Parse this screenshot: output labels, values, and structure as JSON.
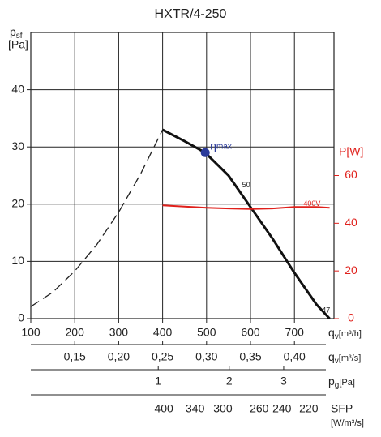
{
  "chart_data": {
    "type": "line",
    "title": "HXTR/4-250",
    "y_label": {
      "main": "p",
      "sub": "sf",
      "unit": "[Pa]"
    },
    "x_label": {
      "main": "q",
      "sub": "v",
      "unit": "[m³/h]"
    },
    "y2_label": "P[W]",
    "y2_color": "#e0201b",
    "xlim": [
      100,
      790
    ],
    "xticks": [
      100,
      200,
      300,
      400,
      500,
      600,
      700
    ],
    "ylim": [
      0,
      50
    ],
    "yticks": [
      0,
      10,
      20,
      30,
      40
    ],
    "y2lim": [
      0,
      120
    ],
    "y2ticks": [
      0,
      20,
      40,
      60
    ],
    "grid": true,
    "series": [
      {
        "color": "#222222",
        "dash": true,
        "x": [
          100,
          150,
          200,
          250,
          300,
          350,
          400
        ],
        "values": [
          2.1,
          4.6,
          8.3,
          12.9,
          18.6,
          25.3,
          33
        ]
      },
      {
        "color": "#111111",
        "dash": false,
        "x": [
          400,
          450,
          497,
          550,
          600,
          650,
          700,
          750,
          780
        ],
        "values": [
          33,
          31,
          29,
          25,
          19.5,
          14,
          8,
          2.5,
          0
        ]
      },
      {
        "color": "#e0201b",
        "dash": false,
        "axis": "y2",
        "x": [
          400,
          450,
          500,
          550,
          600,
          650,
          700,
          750,
          780
        ],
        "values": [
          47.5,
          47,
          46.5,
          46.2,
          46,
          46.2,
          46.8,
          46.8,
          46.5
        ]
      }
    ],
    "marker": {
      "x": 497,
      "value": 29,
      "color": "#2a3a9a",
      "label_main": "η",
      "label_sub": "max"
    },
    "annotations": [
      {
        "text": "50",
        "x": 590,
        "y": 23.3
      },
      {
        "text": "400V",
        "x": 740,
        "y2": 48,
        "color": "#e0201b"
      },
      {
        "text": "47",
        "x": 772,
        "y": 1.4
      }
    ],
    "x_axes": [
      {
        "label": {
          "main": "q",
          "sub": "v",
          "unit": "[m³/s]"
        },
        "xlim": [
          0.1,
          0.445
        ],
        "xticks": [
          {
            "value": 0.15,
            "label": "0,15"
          },
          {
            "value": 0.2,
            "label": "0,20"
          },
          {
            "value": 0.25,
            "label": "0,25"
          },
          {
            "value": 0.3,
            "label": "0,30"
          },
          {
            "value": 0.35,
            "label": "0,35"
          },
          {
            "value": 0.4,
            "label": "0,40"
          }
        ]
      },
      {
        "label": {
          "main": "p",
          "sub": "g",
          "unit": "[Pa]"
        },
        "scale": "sqrt",
        "xlim": [
          0.0657,
          4.103
        ],
        "xticks": [
          1,
          2,
          3
        ]
      },
      {
        "label": {
          "main": "SFP",
          "unit": "[W/m³/s]"
        },
        "scale": "reciprocal",
        "xlim": [
          1610,
          204
        ],
        "xticks": [
          400,
          340,
          300,
          260,
          240,
          220
        ]
      }
    ]
  }
}
